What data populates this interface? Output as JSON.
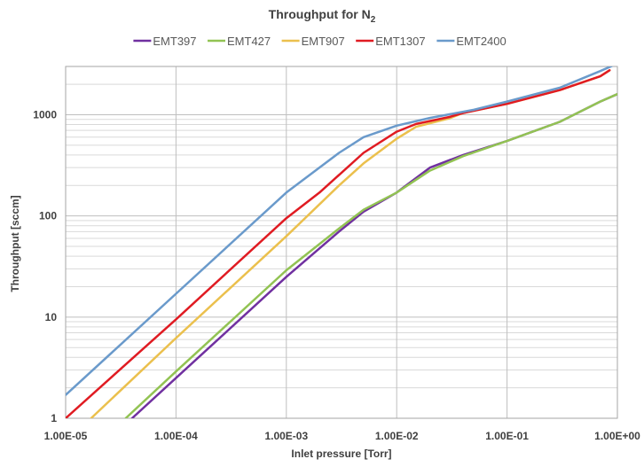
{
  "chart_data": {
    "type": "line",
    "title": "Throughput for N",
    "title_subscript": "2",
    "xlabel": "Inlet pressure [Torr]",
    "ylabel": "Throughput [sccm]",
    "x_scale": "log",
    "y_scale": "log",
    "xlim": [
      1e-05,
      1
    ],
    "ylim": [
      1,
      3000
    ],
    "x_ticks": [
      1e-05,
      0.0001,
      0.001,
      0.01,
      0.1,
      1
    ],
    "x_tick_labels": [
      "1.00E-05",
      "1.00E-04",
      "1.00E-03",
      "1.00E-02",
      "1.00E-01",
      "1.00E+00"
    ],
    "y_ticks": [
      1,
      10,
      100,
      1000
    ],
    "y_tick_labels": [
      "1",
      "10",
      "100",
      "1000"
    ],
    "grid": true,
    "legend_position": "top",
    "series": [
      {
        "name": "EMT397",
        "color": "#7030a0",
        "points": [
          [
            4e-05,
            1
          ],
          [
            0.0001,
            2.5
          ],
          [
            0.001,
            25
          ],
          [
            0.003,
            70
          ],
          [
            0.005,
            110
          ],
          [
            0.01,
            170
          ],
          [
            0.02,
            300
          ],
          [
            0.04,
            400
          ],
          [
            0.1,
            550
          ],
          [
            0.3,
            850
          ],
          [
            0.7,
            1350
          ],
          [
            1.0,
            1600
          ]
        ]
      },
      {
        "name": "EMT427",
        "color": "#92c353",
        "points": [
          [
            3.5e-05,
            1
          ],
          [
            0.0001,
            2.9
          ],
          [
            0.001,
            29
          ],
          [
            0.003,
            75
          ],
          [
            0.005,
            115
          ],
          [
            0.01,
            170
          ],
          [
            0.02,
            280
          ],
          [
            0.04,
            390
          ],
          [
            0.1,
            550
          ],
          [
            0.3,
            850
          ],
          [
            0.7,
            1350
          ],
          [
            1.0,
            1600
          ]
        ]
      },
      {
        "name": "EMT907",
        "color": "#ebc04d",
        "points": [
          [
            1.7e-05,
            1
          ],
          [
            0.0001,
            6.2
          ],
          [
            0.001,
            63
          ],
          [
            0.003,
            200
          ],
          [
            0.005,
            330
          ],
          [
            0.01,
            580
          ],
          [
            0.015,
            760
          ],
          [
            0.03,
            920
          ],
          [
            0.04,
            1040
          ],
          [
            0.1,
            1280
          ],
          [
            0.3,
            1750
          ],
          [
            0.7,
            2400
          ],
          [
            0.85,
            2750
          ]
        ]
      },
      {
        "name": "EMT1307",
        "color": "#e01b22",
        "points": [
          [
            1e-05,
            1
          ],
          [
            0.0001,
            9.5
          ],
          [
            0.001,
            95
          ],
          [
            0.002,
            170
          ],
          [
            0.005,
            420
          ],
          [
            0.01,
            680
          ],
          [
            0.015,
            810
          ],
          [
            0.03,
            950
          ],
          [
            0.04,
            1040
          ],
          [
            0.1,
            1280
          ],
          [
            0.3,
            1750
          ],
          [
            0.7,
            2400
          ],
          [
            0.85,
            2750
          ]
        ]
      },
      {
        "name": "EMT2400",
        "color": "#6a9acb",
        "points": [
          [
            1e-05,
            1.7
          ],
          [
            0.0001,
            17
          ],
          [
            0.001,
            170
          ],
          [
            0.003,
            420
          ],
          [
            0.005,
            600
          ],
          [
            0.01,
            780
          ],
          [
            0.02,
            930
          ],
          [
            0.05,
            1120
          ],
          [
            0.1,
            1350
          ],
          [
            0.3,
            1850
          ],
          [
            0.7,
            2700
          ],
          [
            0.9,
            3050
          ]
        ]
      }
    ]
  }
}
